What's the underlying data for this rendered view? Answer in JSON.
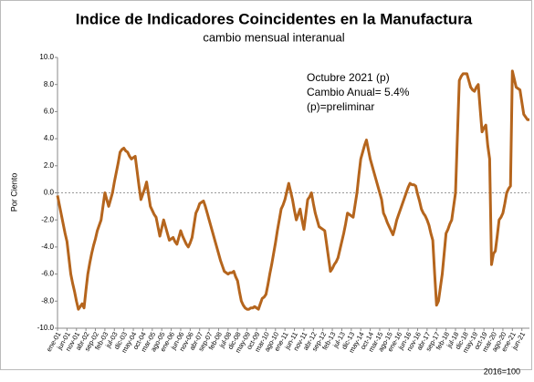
{
  "chart_data": {
    "type": "line",
    "title": "Indice de Indicadores Coincidentes en la Manufactura",
    "subtitle": "cambio mensual interanual",
    "y_label": "Por Ciento",
    "annotations": [
      "Octubre  2021 (p)",
      "Cambio Anual=  5.4%",
      "(p)=preliminar"
    ],
    "footnote": "2016=100",
    "color": "#b5651d",
    "ylim": [
      -10,
      10
    ],
    "yticks": [
      {
        "value": -10,
        "label": "-10.0"
      },
      {
        "value": -8,
        "label": "-8.0"
      },
      {
        "value": -6,
        "label": "-6.0"
      },
      {
        "value": -4,
        "label": "-4.0"
      },
      {
        "value": -2,
        "label": "-2.0"
      },
      {
        "value": 0,
        "label": "0.0"
      },
      {
        "value": 2,
        "label": "2.0"
      },
      {
        "value": 4,
        "label": "4.0"
      },
      {
        "value": 6,
        "label": "6.0"
      },
      {
        "value": 8,
        "label": "8.0"
      },
      {
        "value": 10,
        "label": "10.0"
      }
    ],
    "categories": [
      "ene-01",
      null,
      null,
      null,
      null,
      "jun-01",
      null,
      null,
      null,
      null,
      "nov-01",
      null,
      null,
      null,
      null,
      "abr-02",
      null,
      null,
      null,
      null,
      "sep-02",
      null,
      null,
      null,
      null,
      "feb-03",
      null,
      null,
      null,
      null,
      "jul-03",
      null,
      null,
      null,
      null,
      "dic-03",
      null,
      null,
      null,
      null,
      "may-04",
      null,
      null,
      null,
      null,
      "oct-04",
      null,
      null,
      null,
      null,
      "mar-05",
      null,
      null,
      null,
      null,
      "ago-05",
      null,
      null,
      null,
      null,
      "ene-06",
      null,
      null,
      null,
      null,
      "jun-06",
      null,
      null,
      null,
      null,
      "nov-06",
      null,
      null,
      null,
      null,
      "abr-07",
      null,
      null,
      null,
      null,
      "sep-07",
      null,
      null,
      null,
      null,
      "feb-08",
      null,
      null,
      null,
      null,
      "jul-08",
      null,
      null,
      null,
      null,
      "dic-08",
      null,
      null,
      null,
      null,
      "may-09",
      null,
      null,
      null,
      null,
      "oct-09",
      null,
      null,
      null,
      null,
      "mar-10",
      null,
      null,
      null,
      null,
      "ago-10",
      null,
      null,
      null,
      null,
      "ene-11",
      null,
      null,
      null,
      null,
      "jun-11",
      null,
      null,
      null,
      null,
      "nov-11",
      null,
      null,
      null,
      null,
      "abr-12",
      null,
      null,
      null,
      null,
      "sep-12",
      null,
      null,
      null,
      null,
      "feb-13",
      null,
      null,
      null,
      null,
      "jul-13",
      null,
      null,
      null,
      null,
      "dic-13",
      null,
      null,
      null,
      null,
      "may-14",
      null,
      null,
      null,
      null,
      "oct-14",
      null,
      null,
      null,
      null,
      "mar-15",
      null,
      null,
      null,
      null,
      "ago-15",
      null,
      null,
      null,
      null,
      "ene-16",
      null,
      null,
      null,
      null,
      "jun-16",
      null,
      null,
      null,
      null,
      "nov-16",
      null,
      null,
      null,
      null,
      "abr-17",
      null,
      null,
      null,
      null,
      "sep-17",
      null,
      null,
      null,
      null,
      "feb-18",
      null,
      null,
      null,
      null,
      "jul-18",
      null,
      null,
      null,
      null,
      "dic-18",
      null,
      null,
      null,
      null,
      "may-19",
      null,
      null,
      null,
      null,
      "oct-19",
      null,
      null,
      null,
      null,
      "mar-20",
      null,
      null,
      null,
      null,
      "ago-20",
      null,
      null,
      null,
      null,
      "ene-21",
      null,
      null,
      null,
      null,
      "jun-21",
      null,
      null,
      null,
      null
    ],
    "values": [
      -0.2,
      -0.9,
      -1.6,
      -2.3,
      -3.0,
      -3.6,
      -4.8,
      -6.0,
      -6.7,
      -7.3,
      -8.0,
      -8.6,
      -8.4,
      -8.2,
      -8.5,
      -7.2,
      -6.0,
      -5.2,
      -4.5,
      -3.9,
      -3.4,
      -2.8,
      -2.4,
      -2.0,
      -1.0,
      0.0,
      -0.5,
      -1.0,
      -0.5,
      0.0,
      0.8,
      1.5,
      2.2,
      3.0,
      3.2,
      3.3,
      3.1,
      3.0,
      2.7,
      2.5,
      2.6,
      2.7,
      1.6,
      0.5,
      -0.5,
      -0.1,
      0.3,
      0.8,
      -0.1,
      -1.0,
      -1.3,
      -1.6,
      -1.8,
      -2.5,
      -3.2,
      -2.6,
      -2.0,
      -2.5,
      -3.0,
      -3.5,
      -3.4,
      -3.3,
      -3.6,
      -3.8,
      -3.3,
      -2.8,
      -3.2,
      -3.5,
      -3.8,
      -4.0,
      -3.7,
      -3.3,
      -2.4,
      -1.5,
      -1.2,
      -0.8,
      -0.7,
      -0.6,
      -1.0,
      -1.5,
      -2.0,
      -2.5,
      -3.0,
      -3.5,
      -4.0,
      -4.5,
      -5.0,
      -5.4,
      -5.8,
      -5.9,
      -6.0,
      -5.9,
      -5.9,
      -5.8,
      -6.2,
      -6.5,
      -7.3,
      -8.0,
      -8.3,
      -8.5,
      -8.6,
      -8.6,
      -8.5,
      -8.5,
      -8.4,
      -8.5,
      -8.6,
      -8.2,
      -7.8,
      -7.7,
      -7.5,
      -6.8,
      -6.0,
      -5.3,
      -4.5,
      -3.7,
      -2.8,
      -2.0,
      -1.2,
      -0.9,
      -0.5,
      0.1,
      0.7,
      0.1,
      -0.5,
      -1.3,
      -2.0,
      -1.6,
      -1.2,
      -2.0,
      -2.7,
      -1.6,
      -0.5,
      -0.3,
      0.0,
      -0.8,
      -1.5,
      -2.0,
      -2.5,
      -2.6,
      -2.7,
      -2.8,
      -3.8,
      -4.8,
      -5.8,
      -5.6,
      -5.3,
      -5.1,
      -4.8,
      -4.2,
      -3.6,
      -3.0,
      -2.3,
      -1.5,
      -1.6,
      -1.7,
      -1.8,
      -0.9,
      0.0,
      1.3,
      2.5,
      3.0,
      3.5,
      3.9,
      3.2,
      2.5,
      2.0,
      1.5,
      1.0,
      0.5,
      0.0,
      -0.5,
      -1.5,
      -1.8,
      -2.2,
      -2.5,
      -2.8,
      -3.1,
      -2.6,
      -2.0,
      -1.6,
      -1.2,
      -0.8,
      -0.4,
      0.0,
      0.4,
      0.7,
      0.6,
      0.6,
      0.5,
      -0.1,
      -0.6,
      -1.2,
      -1.5,
      -1.7,
      -2.0,
      -2.4,
      -3.0,
      -3.5,
      -6.0,
      -8.3,
      -8.0,
      -7.0,
      -6.0,
      -4.5,
      -3.0,
      -2.7,
      -2.3,
      -2.0,
      -1.0,
      0.0,
      4.2,
      8.3,
      8.6,
      8.8,
      8.8,
      8.8,
      8.3,
      7.8,
      7.6,
      7.5,
      7.8,
      8.0,
      6.2,
      4.5,
      4.8,
      5.0,
      3.5,
      2.5,
      -5.3,
      -4.5,
      -4.3,
      -3.2,
      -2.0,
      -1.8,
      -1.5,
      -0.8,
      0.0,
      0.3,
      0.5,
      9.0,
      8.4,
      7.8,
      7.7,
      7.6,
      6.7,
      5.8,
      5.6,
      5.4,
      5.4
    ]
  }
}
